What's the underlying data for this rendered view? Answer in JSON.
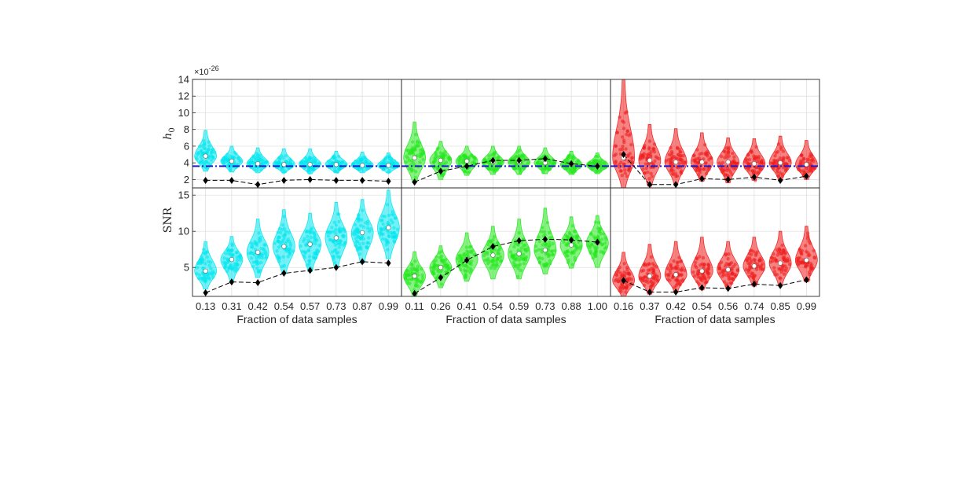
{
  "chart_data": {
    "type": "violin",
    "xlabel": "Fraction of data samples",
    "exponent_label": "×10",
    "exponent_value": "-26",
    "threshold_color": "#1a1ad0",
    "rows": [
      {
        "id": "h0",
        "ylabel": "h0",
        "ylabel_main": "h",
        "ylabel_sub": "0",
        "ylim": [
          1,
          14
        ],
        "yticks": [
          2,
          4,
          6,
          8,
          10,
          12,
          14
        ],
        "threshold": 3.6
      },
      {
        "id": "snr",
        "ylabel": "SNR",
        "ylim": [
          1,
          16
        ],
        "yticks": [
          5,
          10,
          15
        ],
        "threshold": null
      }
    ],
    "columns": [
      {
        "color": "#00e5ee",
        "categories": [
          "0.13",
          "0.31",
          "0.42",
          "0.54",
          "0.57",
          "0.73",
          "0.87",
          "0.99"
        ],
        "h0": {
          "medians": [
            4.8,
            4.2,
            3.9,
            3.8,
            3.8,
            3.8,
            3.7,
            3.7
          ],
          "mins": [
            3.0,
            2.9,
            2.8,
            2.8,
            2.7,
            2.8,
            2.8,
            2.8
          ],
          "maxs": [
            7.9,
            6.0,
            5.8,
            5.7,
            5.7,
            5.4,
            5.3,
            5.2
          ],
          "diamonds": [
            1.9,
            1.9,
            1.4,
            1.9,
            2.0,
            1.9,
            1.9,
            1.8
          ]
        },
        "snr": {
          "medians": [
            4.5,
            6.1,
            7.1,
            7.9,
            8.2,
            9.1,
            9.8,
            10.5
          ],
          "mins": [
            2.0,
            3.2,
            3.6,
            4.1,
            4.4,
            5.0,
            5.6,
            6.2
          ],
          "maxs": [
            8.6,
            9.3,
            11.7,
            13.0,
            12.5,
            14.0,
            14.4,
            15.7
          ],
          "diamonds": [
            1.5,
            3.0,
            2.9,
            4.2,
            4.6,
            5.0,
            5.8,
            5.6
          ]
        }
      },
      {
        "color": "#22e81c",
        "categories": [
          "0.11",
          "0.26",
          "0.41",
          "0.54",
          "0.59",
          "0.73",
          "0.88",
          "1.00"
        ],
        "h0": {
          "medians": [
            4.6,
            4.3,
            4.2,
            4.1,
            4.1,
            4.0,
            3.8,
            3.7
          ],
          "mins": [
            1.6,
            2.0,
            2.5,
            2.6,
            2.6,
            2.7,
            2.6,
            2.7
          ],
          "maxs": [
            8.9,
            6.6,
            6.0,
            6.0,
            6.0,
            5.8,
            5.4,
            5.2
          ],
          "diamonds": [
            1.7,
            3.0,
            3.6,
            4.3,
            4.3,
            4.5,
            3.9,
            3.6
          ]
        },
        "snr": {
          "medians": [
            3.8,
            5.0,
            6.1,
            6.7,
            6.9,
            7.4,
            8.1,
            8.4
          ],
          "mins": [
            1.0,
            2.2,
            3.1,
            3.4,
            3.4,
            4.1,
            4.9,
            5.0
          ],
          "maxs": [
            7.2,
            8.0,
            9.8,
            10.7,
            11.7,
            13.2,
            12.0,
            12.2
          ],
          "diamonds": [
            1.4,
            3.6,
            6.0,
            7.9,
            8.7,
            8.9,
            8.8,
            8.5
          ]
        }
      },
      {
        "color": "#ee1c1c",
        "categories": [
          "0.16",
          "0.37",
          "0.42",
          "0.54",
          "0.56",
          "0.74",
          "0.85",
          "0.99"
        ],
        "h0": {
          "medians": [
            4.6,
            4.3,
            4.1,
            4.1,
            4.1,
            3.9,
            4.0,
            3.8
          ],
          "mins": [
            1.0,
            1.2,
            1.5,
            1.8,
            1.6,
            1.9,
            2.0,
            2.0
          ],
          "maxs": [
            14.2,
            8.6,
            8.1,
            7.6,
            7.0,
            6.9,
            7.2,
            6.7
          ],
          "diamonds": [
            5.0,
            1.4,
            1.4,
            2.1,
            2.0,
            2.3,
            1.9,
            2.4
          ]
        },
        "snr": {
          "medians": [
            3.2,
            3.8,
            4.0,
            4.5,
            4.7,
            5.2,
            5.6,
            6.0
          ],
          "mins": [
            0.9,
            1.3,
            1.7,
            1.9,
            2.0,
            2.4,
            2.6,
            3.0
          ],
          "maxs": [
            7.1,
            8.2,
            8.6,
            9.2,
            8.6,
            9.2,
            10.0,
            10.7
          ],
          "diamonds": [
            3.2,
            1.6,
            1.6,
            2.2,
            2.1,
            2.7,
            2.5,
            3.3
          ]
        }
      }
    ]
  }
}
